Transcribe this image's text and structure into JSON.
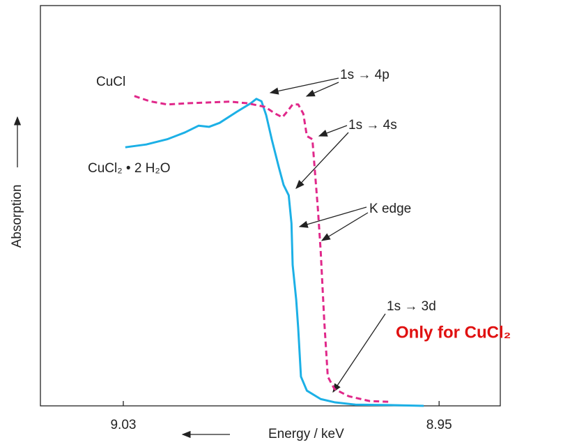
{
  "chart_data": {
    "type": "line",
    "x_label": "Energy / keV",
    "y_label": "Absorption",
    "xlim": [
      9.051,
      8.9345
    ],
    "xticks": [
      9.03,
      8.95
    ],
    "ylim": [
      0,
      1
    ],
    "series": [
      {
        "name": "CuCl₂ • 2 H₂O",
        "color": "#1cb0e6",
        "dashed": false,
        "x": [
          9.0295,
          9.0242,
          9.0189,
          9.0144,
          9.0109,
          9.0083,
          9.0056,
          9.0012,
          8.9977,
          8.9963,
          8.995,
          8.9938,
          8.9924,
          8.9906,
          8.9894,
          8.9881,
          8.9874,
          8.9871,
          8.9862,
          8.9857,
          8.985,
          8.9835,
          8.98,
          8.9765,
          8.9712,
          8.9624,
          8.9539
        ],
        "values": [
          0.646,
          0.653,
          0.666,
          0.683,
          0.7,
          0.697,
          0.707,
          0.735,
          0.756,
          0.767,
          0.761,
          0.726,
          0.666,
          0.596,
          0.552,
          0.526,
          0.456,
          0.352,
          0.265,
          0.195,
          0.073,
          0.038,
          0.017,
          0.009,
          0.003,
          0.002,
          0
        ]
      },
      {
        "name": "CuCl",
        "color": "#e0288a",
        "dashed": true,
        "x": [
          9.0272,
          9.0233,
          9.0189,
          9.0136,
          9.0083,
          9.003,
          8.9986,
          8.9941,
          8.9915,
          8.9897,
          8.9885,
          8.9871,
          8.9857,
          8.9844,
          8.9835,
          8.9821,
          8.9814,
          8.9807,
          8.98,
          8.9791,
          8.9782,
          8.9765,
          8.9729,
          8.9676,
          8.9624
        ],
        "values": [
          0.774,
          0.761,
          0.753,
          0.756,
          0.758,
          0.76,
          0.756,
          0.747,
          0.73,
          0.721,
          0.735,
          0.753,
          0.753,
          0.73,
          0.674,
          0.666,
          0.578,
          0.491,
          0.387,
          0.213,
          0.073,
          0.042,
          0.024,
          0.012,
          0.01
        ]
      }
    ],
    "annotations": [
      "1s → 4p",
      "1s → 4s",
      "K edge",
      "1s → 3d",
      "Only for CuCl₂"
    ]
  }
}
